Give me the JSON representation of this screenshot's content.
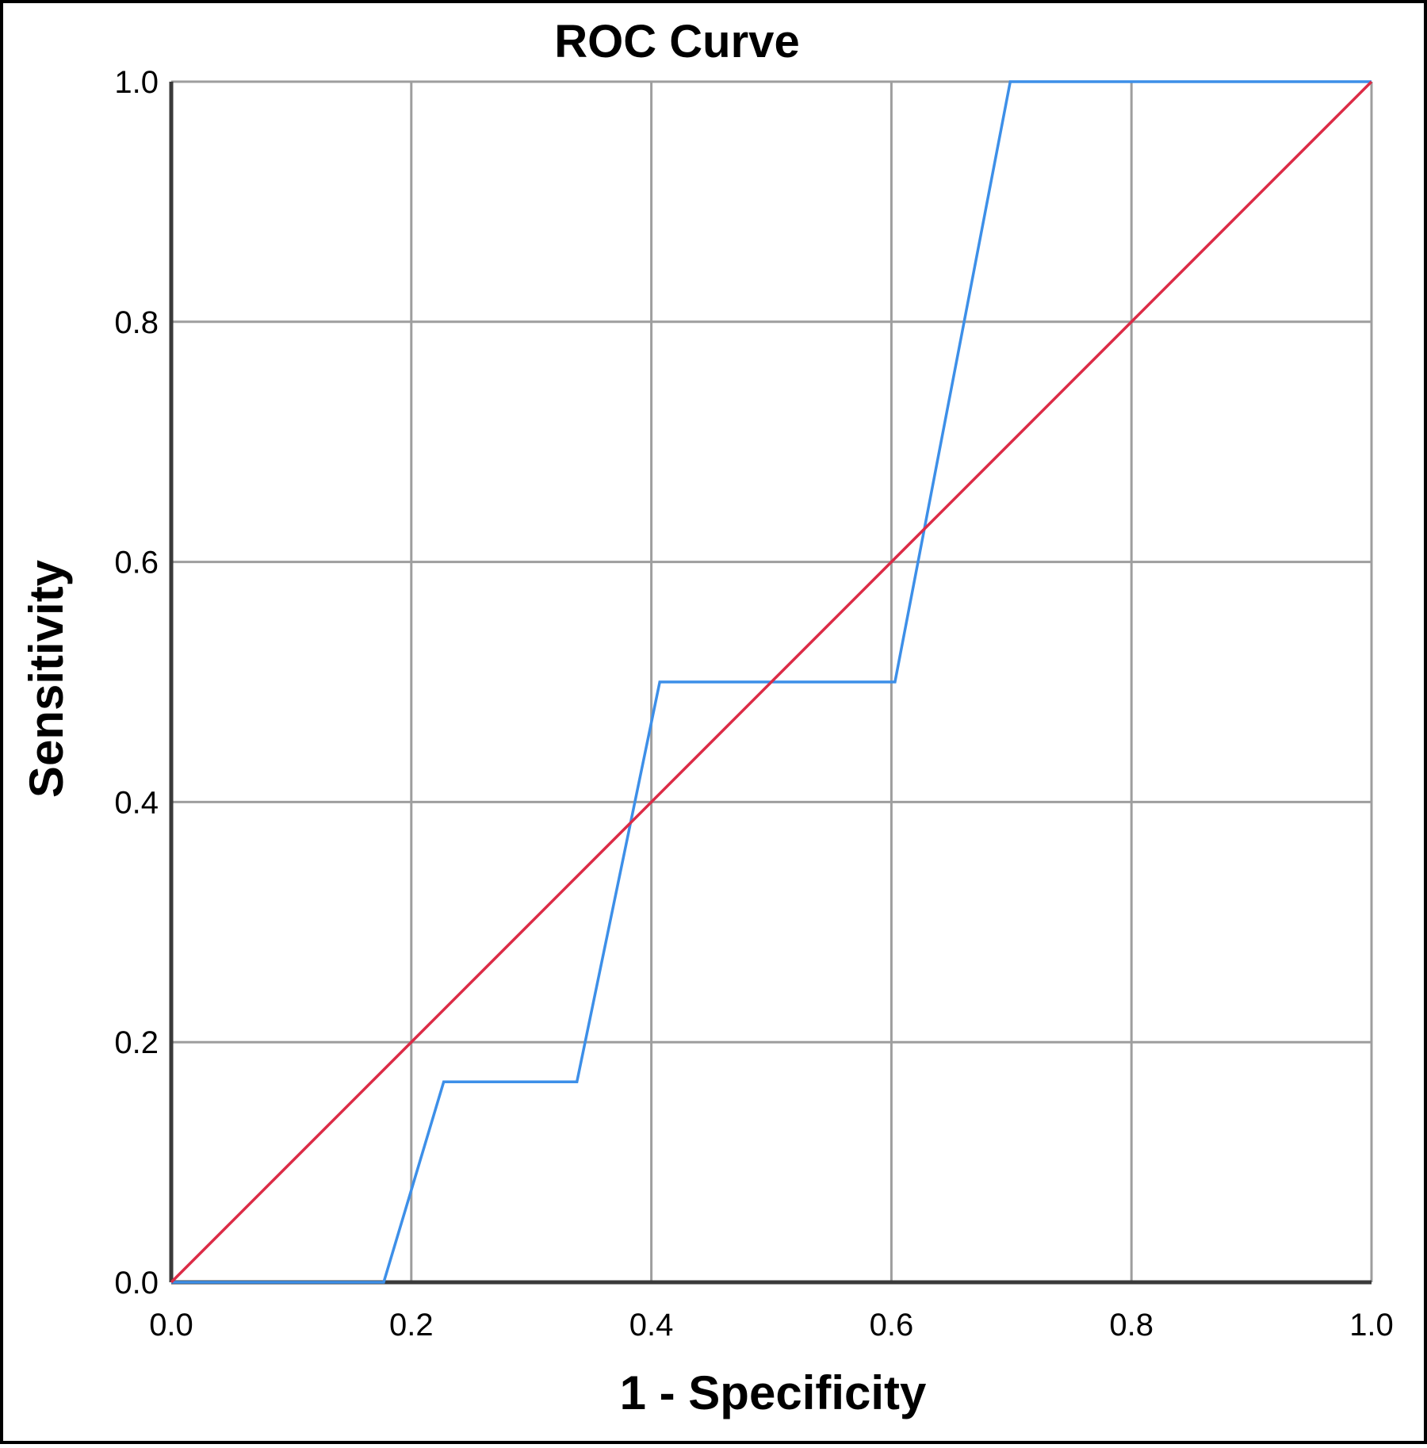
{
  "chart_data": {
    "type": "line",
    "title": "ROC Curve",
    "xlabel": "1 - Specificity",
    "ylabel": "Sensitivity",
    "xlim": [
      0,
      1
    ],
    "ylim": [
      0,
      1
    ],
    "grid": true,
    "x_ticks": [
      "0.0",
      "0.2",
      "0.4",
      "0.6",
      "0.8",
      "1.0"
    ],
    "y_ticks": [
      "0.0",
      "0.2",
      "0.4",
      "0.6",
      "0.8",
      "1.0"
    ],
    "series": [
      {
        "color": "#3d8fe8",
        "points": [
          [
            0,
            0
          ],
          [
            0.177,
            0
          ],
          [
            0.227,
            0.167
          ],
          [
            0.338,
            0.167
          ],
          [
            0.407,
            0.5
          ],
          [
            0.603,
            0.5
          ],
          [
            0.699,
            1
          ],
          [
            1,
            1
          ]
        ]
      },
      {
        "color": "#dc2b46",
        "points": [
          [
            0,
            0
          ],
          [
            1,
            1
          ]
        ]
      }
    ]
  },
  "colors": {
    "grid": "#9e9e9e",
    "axis": "#3a3a3a",
    "frame": "#000000",
    "background": "#ffffff"
  }
}
